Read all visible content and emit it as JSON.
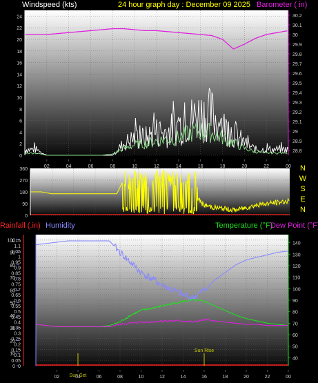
{
  "header": {
    "left": "Windspeed (kts)",
    "center": "24 hour graph day : December 09 2025",
    "right": "Barometer ( in)"
  },
  "colors": {
    "windspeed": "#ffffff",
    "windgust": "#8de28d",
    "barometer": "#e020e0",
    "direction": "#ffff00",
    "rainfall": "#ff2020",
    "humidity": "#8888ff",
    "temperature": "#20e020",
    "dewpoint": "#e020e0",
    "sunmarker": "#c8c800"
  },
  "chart_data": [
    {
      "type": "line",
      "panel": "wind_barometer",
      "x_ticks": [
        "02",
        "04",
        "06",
        "08",
        "10",
        "12",
        "14",
        "16",
        "18",
        "20",
        "22",
        "00"
      ],
      "y_left_label": "Windspeed (kts)",
      "y_left_ticks": [
        0,
        2,
        4,
        6,
        8,
        10,
        12,
        14,
        16,
        18,
        20,
        22,
        24
      ],
      "ylim_left": [
        0,
        25
      ],
      "y_right_label": "Barometer ( in)",
      "y_right_ticks": [
        "28.8",
        "28.9",
        "29",
        "29.1",
        "29.2",
        "29.3",
        "29.4",
        "29.5",
        "29.6",
        "29.7",
        "29.8",
        "29.9",
        "30",
        "30.1",
        "30.2"
      ],
      "ylim_right": [
        28.75,
        30.25
      ],
      "x_hours": [
        0,
        1,
        2,
        3,
        4,
        5,
        6,
        7,
        8,
        9,
        10,
        11,
        12,
        13,
        14,
        15,
        16,
        17,
        18,
        19,
        20,
        21,
        22,
        23,
        24
      ],
      "series": [
        {
          "values": [
            1,
            1,
            0,
            0,
            0,
            0,
            0,
            0,
            0,
            2,
            3,
            3,
            4,
            4,
            5,
            6,
            7,
            7,
            5,
            4,
            2,
            1,
            1,
            1,
            1
          ]
        },
        {
          "values": [
            0.4,
            0.4,
            0,
            0,
            0,
            0,
            0,
            0,
            0.2,
            1.2,
            1.8,
            2,
            2.5,
            2.8,
            3,
            3.8,
            4.2,
            3.8,
            3,
            2.2,
            1.2,
            0.6,
            0.4,
            0.4,
            0.4
          ]
        },
        {
          "values": [
            30.0,
            30.0,
            30.0,
            30.01,
            30.02,
            30.03,
            30.04,
            30.05,
            30.06,
            30.06,
            30.05,
            30.04,
            30.04,
            30.03,
            30.02,
            30.01,
            30.0,
            29.99,
            29.95,
            29.85,
            29.9,
            29.96,
            30.0,
            30.02,
            30.04
          ]
        }
      ]
    },
    {
      "type": "line",
      "panel": "wind_direction",
      "y_ticks": [
        0,
        90,
        180,
        270,
        360
      ],
      "ylim": [
        0,
        360
      ],
      "compass_labels": [
        "N",
        "W",
        "S",
        "E",
        "N"
      ],
      "x_hours": [
        0,
        1,
        2,
        3,
        4,
        5,
        6,
        7,
        8,
        8.5,
        9,
        10,
        11,
        12,
        13,
        14,
        15,
        16,
        17,
        18,
        19,
        20,
        21,
        22,
        23,
        24
      ],
      "series": [
        {
          "values": [
            180,
            180,
            165,
            165,
            165,
            165,
            165,
            165,
            165,
            250,
            260,
            130,
            200,
            120,
            190,
            110,
            180,
            80,
            60,
            50,
            40,
            60,
            80,
            90,
            100,
            110
          ]
        }
      ]
    },
    {
      "type": "line",
      "panel": "rain_humidity_temperature",
      "y_left_ticks": [
        "0",
        "0.05",
        "0.1",
        "0.15",
        "0.2",
        "0.25",
        "0.3",
        "0.35",
        "0.4",
        "0.45",
        "0.5",
        "0.55",
        "0.6",
        "0.65",
        "0.7",
        "0.75",
        "0.8",
        "0.85",
        "0.9",
        "0.95",
        "1",
        "1.05",
        "1.1",
        "1.15"
      ],
      "ylim_left": [
        0,
        1.2
      ],
      "y_humidity_ticks": [
        0,
        10,
        20,
        30,
        40,
        50,
        60,
        70,
        80,
        90,
        100
      ],
      "ylim_humidity": [
        0,
        104
      ],
      "y_right_ticks": [
        40,
        50,
        60,
        70,
        80,
        90,
        100,
        110,
        120,
        130,
        140
      ],
      "ylim_right": [
        33,
        147
      ],
      "x_hours": [
        0,
        1,
        2,
        3,
        4,
        5,
        6,
        7,
        8,
        9,
        10,
        11,
        12,
        13,
        14,
        15,
        16,
        17,
        18,
        19,
        20,
        21,
        22,
        23,
        24
      ],
      "series": [
        {
          "name": "Rainfall (.in)",
          "values": [
            0,
            0,
            0,
            0,
            0,
            0,
            0,
            0,
            0,
            0,
            0,
            0,
            0,
            0,
            0,
            0,
            0,
            0,
            0,
            0,
            0,
            0,
            0,
            0,
            0
          ]
        },
        {
          "name": "Humidity",
          "values": [
            96,
            97,
            98,
            99,
            99,
            99,
            99,
            99,
            90,
            82,
            74,
            69,
            64,
            60,
            56,
            54,
            60,
            68,
            74,
            80,
            84,
            86,
            88,
            90,
            91
          ]
        },
        {
          "name": "Temperature (°F)",
          "values": [
            69,
            68,
            67,
            67,
            67,
            67,
            67,
            68,
            71,
            77,
            81,
            83,
            85,
            87,
            89,
            90,
            89,
            85,
            81,
            77,
            74,
            72,
            70,
            69,
            68
          ]
        },
        {
          "name": "Dew Point (°F)",
          "values": [
            69,
            68,
            67,
            67,
            67,
            67,
            67,
            67,
            69,
            70,
            71,
            71,
            72,
            72,
            72,
            71,
            73,
            72,
            71,
            70,
            69,
            69,
            68,
            68,
            68
          ]
        }
      ],
      "annotations": [
        {
          "text": "Sun Set",
          "x": 4
        },
        {
          "text": "Sun Rise",
          "x": 16
        }
      ]
    }
  ]
}
